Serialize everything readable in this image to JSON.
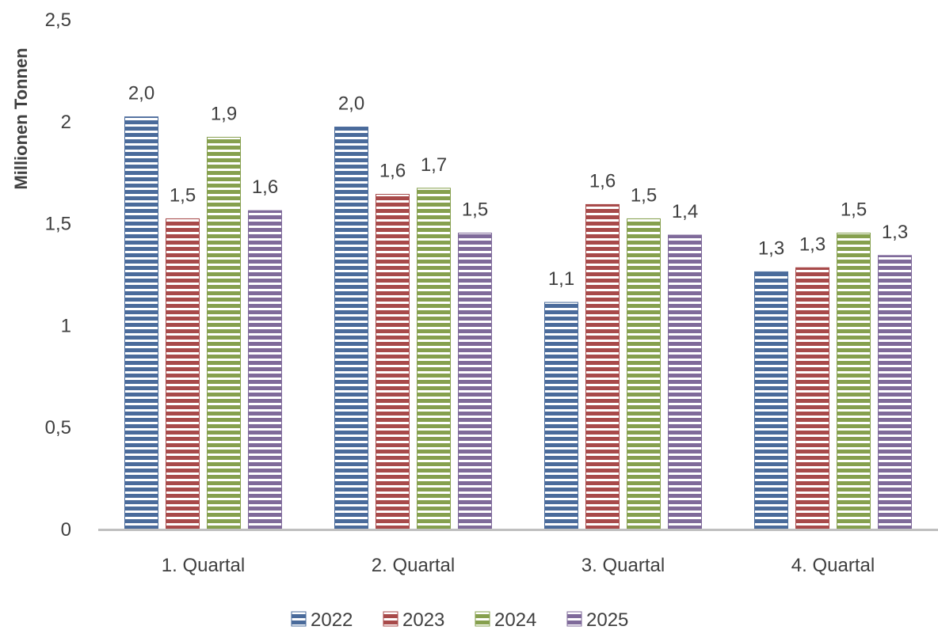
{
  "chart_data": {
    "type": "bar",
    "title": "",
    "xlabel": "",
    "ylabel": "Millionen Tonnen",
    "ylim": [
      0,
      2.5
    ],
    "yticks": [
      "0",
      "0,5",
      "1",
      "1,5",
      "2",
      "2,5"
    ],
    "categories": [
      "1. Quartal",
      "2. Quartal",
      "3. Quartal",
      "4. Quartal"
    ],
    "series": [
      {
        "name": "2022",
        "color": "#4a6b9b",
        "values": [
          2.02,
          1.97,
          1.11,
          1.26
        ],
        "labels": [
          "2,0",
          "2,0",
          "1,1",
          "1,3"
        ]
      },
      {
        "name": "2023",
        "color": "#a84a4a",
        "values": [
          1.52,
          1.64,
          1.59,
          1.28
        ],
        "labels": [
          "1,5",
          "1,6",
          "1,6",
          "1,3"
        ]
      },
      {
        "name": "2024",
        "color": "#86a04e",
        "values": [
          1.92,
          1.67,
          1.52,
          1.45
        ],
        "labels": [
          "1,9",
          "1,7",
          "1,5",
          "1,5"
        ]
      },
      {
        "name": "2025",
        "color": "#7f6a9a",
        "values": [
          1.56,
          1.45,
          1.44,
          1.34
        ],
        "labels": [
          "1,6",
          "1,5",
          "1,4",
          "1,3"
        ]
      }
    ],
    "grid": false,
    "legend": "bottom"
  }
}
